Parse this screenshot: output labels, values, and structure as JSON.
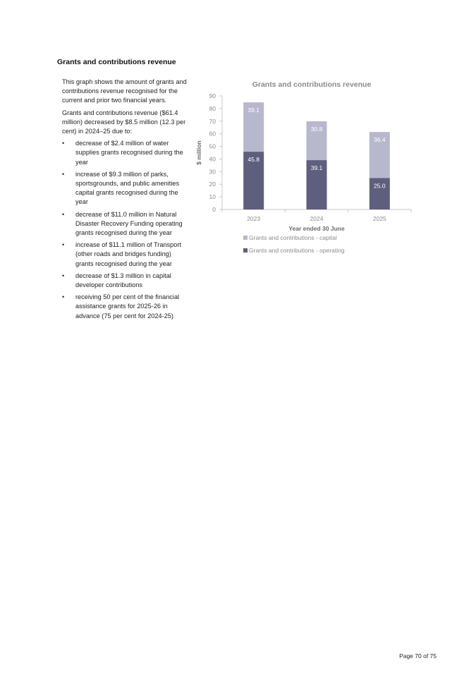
{
  "section": {
    "heading": "Grants and contributions revenue",
    "intro": "This graph shows the amount of grants and contributions revenue recognised for the current and prior two financial years.",
    "summary": "Grants and contributions revenue ($61.4 million) decreased by $8.5 million (12.3 per cent) in 2024–25 due to:",
    "bullets": [
      "decrease of $2.4 million of water supplies grants recognised during the year",
      "increase of $9.3 million of parks, sportsgrounds, and public amenities capital grants recognised during the year",
      "decrease of $11.0 million in Natural Disaster Recovery Funding operating grants recognised during the year",
      "increase of $11.1 million of Transport (other roads and bridges funding) grants recognised during the year",
      "decrease of $1.3 million in capital developer contributions",
      "receiving 50 per cent of the financial assistance grants for 2025-26 in advance (75 per cent for 2024-25)"
    ]
  },
  "chart_data": {
    "type": "bar",
    "stacked": true,
    "title": "Grants and contributions revenue",
    "xlabel": "Year ended 30 June",
    "ylabel": "$ million",
    "categories": [
      "2023",
      "2024",
      "2025"
    ],
    "ylim": [
      0,
      90
    ],
    "yticks": [
      0,
      10,
      20,
      30,
      40,
      50,
      60,
      70,
      80,
      90
    ],
    "grid": false,
    "legend_position": "bottom",
    "series": [
      {
        "name": "Grants and contributions - operating",
        "values": [
          45.8,
          39.1,
          25.0
        ],
        "labels": [
          "45.8",
          "39.1",
          "25.0"
        ],
        "color": "#5e5e7e"
      },
      {
        "name": "Grants and contributions - capital",
        "values": [
          39.1,
          30.8,
          36.4
        ],
        "labels": [
          "39.1",
          "30.8",
          "36.4"
        ],
        "color": "#b7b8cc"
      }
    ]
  },
  "footer": {
    "page": "Page 70 of 75"
  }
}
